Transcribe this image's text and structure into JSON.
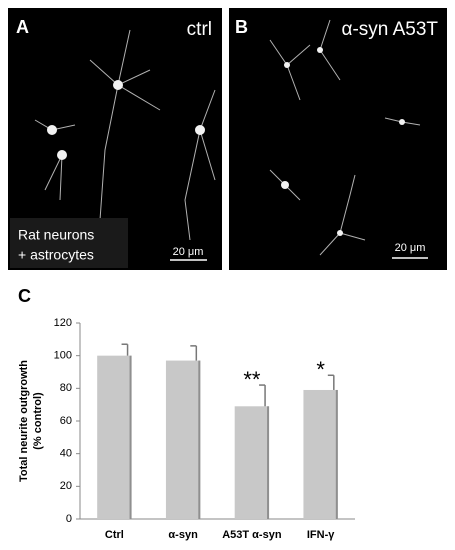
{
  "panels": [
    {
      "label": "A",
      "title": "ctrl",
      "caption": [
        "Rat neurons",
        "+ astrocytes"
      ],
      "scale_bar": "20 μm"
    },
    {
      "label": "B",
      "title": "α-syn A53T",
      "scale_bar": "20 μm"
    }
  ],
  "chart_data": {
    "type": "bar",
    "panel_label": "C",
    "ylabel": [
      "Total neurite outgrowth",
      "(% control)"
    ],
    "categories": [
      "Ctrl",
      "α-syn",
      "A53T α-syn",
      "IFN-γ"
    ],
    "values": [
      100,
      97,
      69,
      79
    ],
    "errors": [
      7,
      9,
      13,
      9
    ],
    "annotations": [
      null,
      null,
      "**",
      "*"
    ],
    "color": "#c8c8c8",
    "ylim": [
      0,
      120
    ],
    "yticks": [
      0,
      20,
      40,
      60,
      80,
      100,
      120
    ],
    "grid": false
  }
}
